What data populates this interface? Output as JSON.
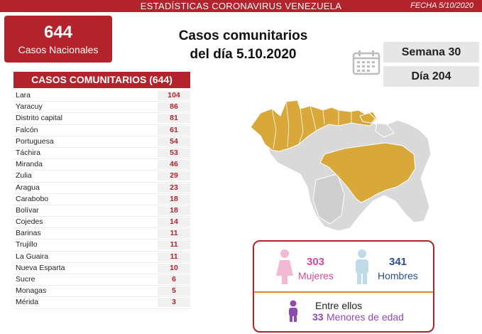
{
  "header": {
    "title": "ESTADÍSTICAS CORONAVIRUS VENEZUELA",
    "date": "FECHA 5/10/2020",
    "accent_color": "#b3232b"
  },
  "national": {
    "count": "644",
    "label": "Casos Nacionales"
  },
  "headline": {
    "line1": "Casos comunitarios",
    "line2": "del día 5.10.2020"
  },
  "calendar": {
    "icon": "calendar-icon",
    "week": "Semana 30",
    "day": "Día 204"
  },
  "table": {
    "title": "CASOS COMUNITARIOS (644)",
    "rows": [
      {
        "state": "Lara",
        "cases": "104"
      },
      {
        "state": "Yaracuy",
        "cases": "86"
      },
      {
        "state": "Distrito capital",
        "cases": "81"
      },
      {
        "state": "Falcón",
        "cases": "61"
      },
      {
        "state": "Portuguesa",
        "cases": "54"
      },
      {
        "state": "Táchira",
        "cases": "53"
      },
      {
        "state": "Miranda",
        "cases": "46"
      },
      {
        "state": "Zulia",
        "cases": "29"
      },
      {
        "state": "Aragua",
        "cases": "23"
      },
      {
        "state": "Carabobo",
        "cases": "18"
      },
      {
        "state": "Bolívar",
        "cases": "18"
      },
      {
        "state": "Cojedes",
        "cases": "14"
      },
      {
        "state": "Barinas",
        "cases": "11"
      },
      {
        "state": "Trujillo",
        "cases": "11"
      },
      {
        "state": "La Guaira",
        "cases": "11"
      },
      {
        "state": "Nueva Esparta",
        "cases": "10"
      },
      {
        "state": "Sucre",
        "cases": "6"
      },
      {
        "state": "Monagas",
        "cases": "5"
      },
      {
        "state": "Mérida",
        "cases": "3"
      }
    ]
  },
  "map": {
    "highlight_color": "#d8a93a",
    "base_color": "#d9d9d9"
  },
  "demographics": {
    "women_count": "303",
    "women_label": "Mujeres",
    "men_count": "341",
    "men_label": "Hombres",
    "among_label": "Entre ellos",
    "minors_count": "33",
    "minors_label": "Menores de edad",
    "women_color": "#f3b8d2",
    "men_color": "#bfdbe8",
    "kid_color": "#8e4bb0"
  }
}
